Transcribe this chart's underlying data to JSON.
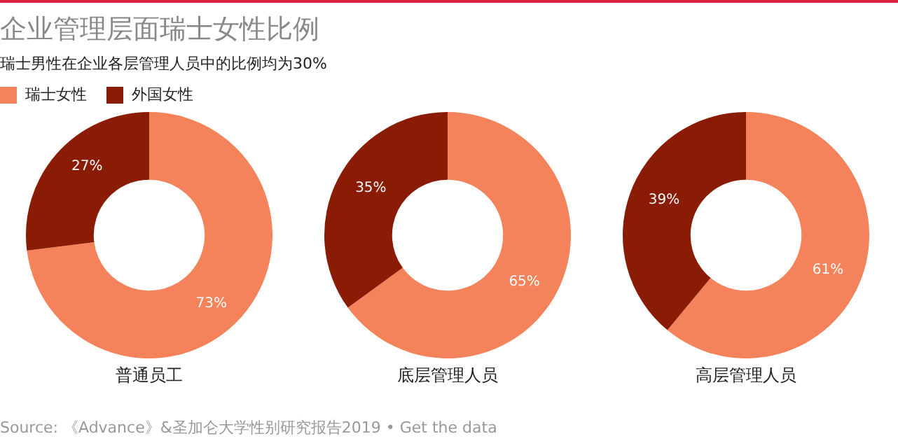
{
  "chart_data": [
    {
      "type": "donut",
      "title": "企业管理层面瑞士女性比例",
      "subtitle": "瑞士男性在企业各层管理人员中的比例均为30%",
      "xlabel": "普通员工",
      "legend": "top left",
      "categories": [
        "瑞士女性",
        "外国女性"
      ],
      "values": [
        73,
        27
      ],
      "value_labels": [
        "73%",
        "27%"
      ],
      "colors": [
        "#f4825a",
        "#8a1c05"
      ],
      "annotations": [
        "Source: 《Advance》&圣加仑大学性别研究报告2019 • Get the data"
      ]
    },
    {
      "type": "donut",
      "xlabel": "底层管理人员",
      "categories": [
        null,
        null
      ],
      "values": [
        65,
        35
      ],
      "value_labels": [
        "65%",
        "35%"
      ],
      "colors": [
        "#f4825a",
        "#8a1c05"
      ]
    },
    {
      "type": "donut",
      "xlabel": "高层管理人员",
      "categories": [
        null,
        null
      ],
      "values": [
        61,
        39
      ],
      "value_labels": [
        "61%",
        "39%"
      ],
      "colors": [
        "#f4825a",
        "#8a1c05"
      ]
    }
  ]
}
